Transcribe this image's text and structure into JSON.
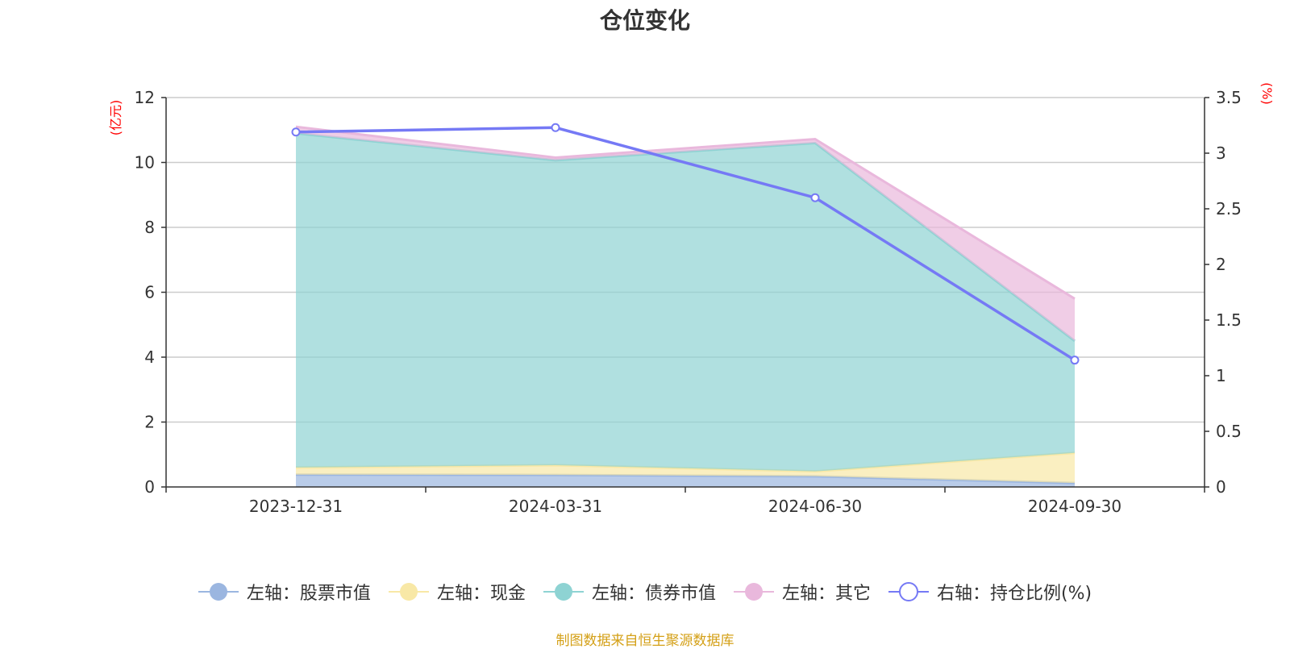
{
  "title": "仓位变化",
  "footer": "制图数据来自恒生聚源数据库",
  "colors": {
    "stock": "#9bb6e0",
    "cash": "#f8e8a6",
    "bond": "#8ed3d3",
    "other": "#e9b8dc",
    "ratio": "#7579f5",
    "unit_label": "#ff0000",
    "footer": "#d4a017"
  },
  "chart_data": {
    "type": "area",
    "x": [
      "2023-12-31",
      "2024-03-31",
      "2024-06-30",
      "2024-09-30"
    ],
    "left_axis": {
      "label": "(亿元)",
      "ylim": [
        0,
        12
      ],
      "ticks": [
        "0",
        "2",
        "4",
        "6",
        "8",
        "10",
        "12"
      ]
    },
    "right_axis": {
      "label": "(%)",
      "ylim": [
        0,
        3.5
      ],
      "ticks": [
        "0",
        "0.5",
        "1",
        "1.5",
        "2",
        "2.5",
        "3",
        "3.5"
      ]
    },
    "stacked": true,
    "series": [
      {
        "name": "左轴：股票市值",
        "axis": "left",
        "values": [
          0.38,
          0.37,
          0.33,
          0.12
        ]
      },
      {
        "name": "左轴：现金",
        "axis": "left",
        "values": [
          0.22,
          0.3,
          0.15,
          0.93
        ]
      },
      {
        "name": "左轴：债券市值",
        "axis": "left",
        "values": [
          10.3,
          9.4,
          10.12,
          3.45
        ]
      },
      {
        "name": "左轴：其它",
        "axis": "left",
        "values": [
          0.2,
          0.08,
          0.12,
          1.3
        ]
      },
      {
        "name": "右轴：持仓比例(%)",
        "axis": "right",
        "type": "line",
        "values": [
          3.19,
          3.23,
          2.6,
          1.14
        ]
      }
    ],
    "grid": true,
    "legend_position": "bottom"
  }
}
